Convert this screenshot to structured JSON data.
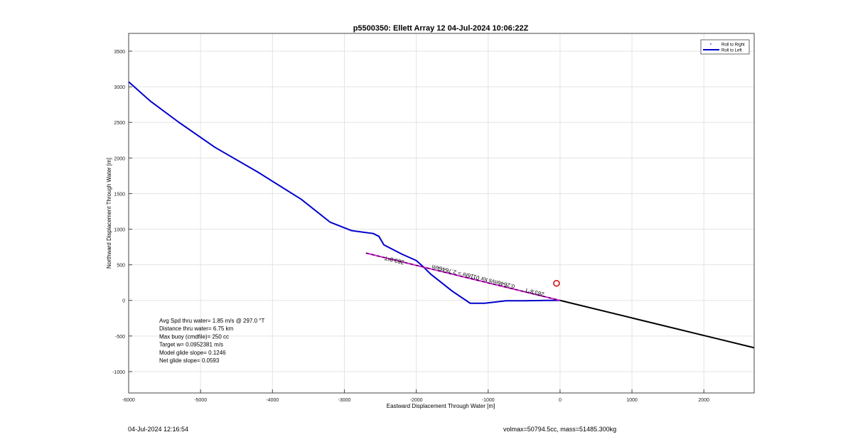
{
  "chart_data": {
    "type": "line",
    "title": "p5500350: Ellett Array 12 04-Jul-2024 10:06:22Z",
    "xlabel": "Eastward Displacement Through Water [m]",
    "ylabel": "Northward Displacement Through Water [m]",
    "xlim": [
      -6000,
      2700
    ],
    "ylim": [
      -1300,
      3750
    ],
    "xticks": [
      -6000,
      -5000,
      -4000,
      -3000,
      -2000,
      -1000,
      0,
      1000,
      2000
    ],
    "yticks": [
      -1000,
      -500,
      0,
      500,
      1000,
      1500,
      2000,
      2500,
      3000,
      3500
    ],
    "grid": true,
    "legend": {
      "placement": "top-right",
      "entries": [
        "Roll to Right",
        "Roll to Left"
      ]
    },
    "series": [
      {
        "name": "Roll to Left",
        "color": "#0000cc",
        "x": [
          -6000,
          -5700,
          -5300,
          -4800,
          -4200,
          -3600,
          -3200,
          -2900,
          -2600,
          -2520,
          -2450,
          -2200,
          -2000,
          -1900,
          -1800,
          -1700,
          -1500,
          -1250,
          -1050,
          -750,
          -500,
          -200,
          0
        ],
        "y": [
          3070,
          2800,
          2500,
          2150,
          1800,
          1420,
          1100,
          980,
          940,
          900,
          780,
          650,
          560,
          470,
          370,
          290,
          130,
          -40,
          -40,
          -5,
          -5,
          0,
          0
        ]
      },
      {
        "name": "",
        "color": "#000000",
        "x": [
          0,
          2700
        ],
        "y": [
          0,
          -665
        ]
      },
      {
        "name": "",
        "color": "#dd22dd",
        "dashed_overlay_color": "#000000",
        "x": [
          -2700,
          0
        ],
        "y": [
          665,
          0
        ]
      }
    ],
    "marker": {
      "x": -50,
      "y": 240,
      "color": "#cc0000"
    },
    "annotations": [
      {
        "text": "283.8°T",
        "x": -2300,
        "y": 590
      },
      {
        "text": "0.2646m/s for 0116hr = 2.7646km",
        "x": -1200,
        "y": 360
      },
      {
        "text": "283.8°T",
        "x": -350,
        "y": 140
      }
    ],
    "stats": [
      "Avg Spd thru water=  1.85 m/s @ 297.0 °T",
      "Distance thru water=  6.75 km",
      "Max buoy (cmdfile)= 250 cc",
      "Target w= 0.0952381 m/s",
      "Model glide slope= 0.1246",
      "Net glide slope= 0.0593"
    ]
  },
  "footer": {
    "timestamp": "04-Jul-2024 12:16:54",
    "info": "volmax=50794.5cc, mass=51485.300kg"
  }
}
